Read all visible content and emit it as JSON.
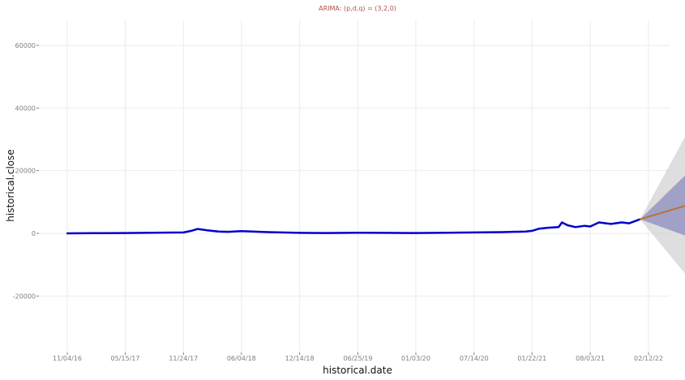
{
  "chart_data": {
    "type": "line",
    "title": "ARIMA: (p,d,q) = (3,2,0)",
    "xlabel": "historical.date",
    "ylabel": "historical.close",
    "ylim": [
      -38000,
      68000
    ],
    "xlim": [
      "2016-11-04",
      "2022-12-12"
    ],
    "x_ticks": [
      "11/04/16",
      "05/15/17",
      "11/24/17",
      "06/04/18",
      "12/14/18",
      "06/25/19",
      "01/03/20",
      "07/14/20",
      "01/22/21",
      "08/03/21",
      "02/12/22"
    ],
    "y_ticks": [
      -20000,
      0,
      20000,
      40000,
      60000
    ],
    "grid": true,
    "series": [
      {
        "type": "line",
        "color": "#0000cc",
        "x": [
          "2016-11-04",
          "2017-02-01",
          "2017-05-15",
          "2017-08-15",
          "2017-11-24",
          "2017-12-20",
          "2018-01-10",
          "2018-02-10",
          "2018-03-20",
          "2018-04-20",
          "2018-06-04",
          "2018-09-01",
          "2018-12-14",
          "2019-03-15",
          "2019-06-25",
          "2019-09-15",
          "2020-01-03",
          "2020-04-15",
          "2020-07-14",
          "2020-10-15",
          "2021-01-01",
          "2021-01-22",
          "2021-02-15",
          "2021-03-15",
          "2021-04-20",
          "2021-05-01",
          "2021-05-20",
          "2021-06-15",
          "2021-07-15",
          "2021-08-03",
          "2021-09-01",
          "2021-10-10",
          "2021-11-15",
          "2021-12-10",
          "2022-01-15"
        ],
        "values": [
          0,
          50,
          120,
          200,
          300,
          800,
          1400,
          1000,
          600,
          500,
          700,
          400,
          150,
          100,
          200,
          150,
          100,
          200,
          300,
          400,
          600,
          800,
          1500,
          1800,
          2000,
          3500,
          2600,
          2000,
          2400,
          2200,
          3500,
          3000,
          3500,
          3200,
          4500
        ]
      },
      {
        "type": "line",
        "color": "#b87333",
        "x": [
          "2022-01-15",
          "2022-12-12"
        ],
        "values": [
          4500,
          14000
        ]
      }
    ],
    "confidence_bands": [
      {
        "level": "outer",
        "color": "#c8c8c8",
        "x": [
          "2022-01-15",
          "2022-12-12"
        ],
        "lower": [
          4500,
          -34000
        ],
        "upper": [
          4500,
          63000
        ]
      },
      {
        "level": "inner",
        "color": "#8c8cbf",
        "x": [
          "2022-01-15",
          "2022-12-12"
        ],
        "lower": [
          4500,
          -7000
        ],
        "upper": [
          4500,
          35500
        ]
      }
    ]
  }
}
